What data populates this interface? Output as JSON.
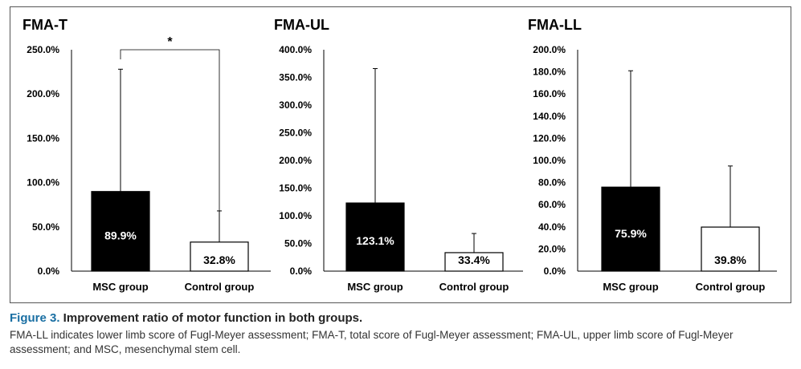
{
  "chart_data": [
    {
      "type": "bar",
      "title": "FMA-T",
      "categories": [
        "MSC group",
        "Control group"
      ],
      "values": [
        89.9,
        32.8
      ],
      "error_upper": [
        228.0,
        68.0
      ],
      "value_labels": [
        "89.9%",
        "32.8%"
      ],
      "yticks": [
        "0.0%",
        "50.0%",
        "100.0%",
        "150.0%",
        "200.0%",
        "250.0%"
      ],
      "ylim": [
        0,
        250
      ],
      "bar_colors": [
        "#000000",
        "#ffffff"
      ],
      "significance": "*"
    },
    {
      "type": "bar",
      "title": "FMA-UL",
      "categories": [
        "MSC group",
        "Control group"
      ],
      "values": [
        123.1,
        33.4
      ],
      "error_upper": [
        366.0,
        68.0
      ],
      "value_labels": [
        "123.1%",
        "33.4%"
      ],
      "yticks": [
        "0.0%",
        "50.0%",
        "100.0%",
        "150.0%",
        "200.0%",
        "250.0%",
        "300.0%",
        "350.0%",
        "400.0%"
      ],
      "ylim": [
        0,
        400
      ],
      "bar_colors": [
        "#000000",
        "#ffffff"
      ]
    },
    {
      "type": "bar",
      "title": "FMA-LL",
      "categories": [
        "MSC group",
        "Control group"
      ],
      "values": [
        75.9,
        39.8
      ],
      "error_upper": [
        181.0,
        95.0
      ],
      "value_labels": [
        "75.9%",
        "39.8%"
      ],
      "yticks": [
        "0.0%",
        "20.0%",
        "40.0%",
        "60.0%",
        "80.0%",
        "100.0%",
        "120.0%",
        "140.0%",
        "160.0%",
        "180.0%",
        "200.0%"
      ],
      "ylim": [
        0,
        200
      ],
      "bar_colors": [
        "#000000",
        "#ffffff"
      ]
    }
  ],
  "caption": {
    "figure_number": "Figure 3.",
    "title": " Improvement ratio of motor function in both groups.",
    "body": "FMA-LL indicates lower limb score of Fugl-Meyer assessment; FMA-T, total score of Fugl-Meyer assessment; FMA-UL, upper limb score of Fugl-Meyer assessment; and MSC, mesenchymal stem cell."
  },
  "colors": {
    "caption_accent": "#1a6fa3",
    "frame": "#555555"
  }
}
